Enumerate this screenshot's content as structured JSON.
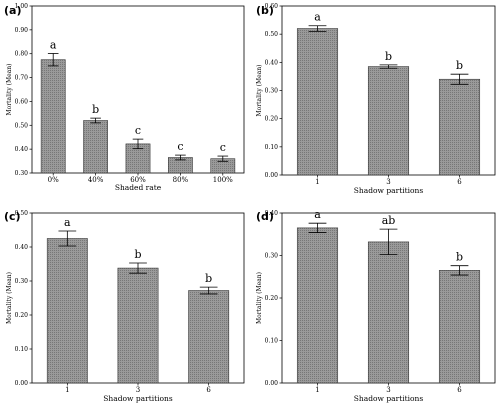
{
  "chart_data": [
    {
      "type": "bar",
      "panel_label": "(a)",
      "categories": [
        "0%",
        "40%",
        "60%",
        "80%",
        "100%"
      ],
      "values": [
        0.775,
        0.52,
        0.422,
        0.365,
        0.36
      ],
      "errors": [
        0.026,
        0.01,
        0.02,
        0.01,
        0.011
      ],
      "significance": [
        "a",
        "b",
        "c",
        "c",
        "c"
      ],
      "xlabel": "Shaded rate",
      "ylabel": "Mortality (Mean)",
      "ylim": [
        0.3,
        1.0
      ],
      "yticks": [
        "0.30",
        "0.40",
        "0.50",
        "0.60",
        "0.70",
        "0.80",
        "0.90",
        "1.00"
      ]
    },
    {
      "type": "bar",
      "panel_label": "(b)",
      "categories": [
        "1",
        "3",
        "6"
      ],
      "values": [
        0.52,
        0.385,
        0.34
      ],
      "errors": [
        0.01,
        0.006,
        0.018
      ],
      "significance": [
        "a",
        "b",
        "b"
      ],
      "xlabel": "Shadow partitions",
      "ylabel": "Mortality (Mean)",
      "ylim": [
        0.0,
        0.6
      ],
      "yticks": [
        "0.00",
        "0.10",
        "0.20",
        "0.30",
        "0.40",
        "0.50",
        "0.60"
      ]
    },
    {
      "type": "bar",
      "panel_label": "(c)",
      "categories": [
        "1",
        "3",
        "6"
      ],
      "values": [
        0.425,
        0.338,
        0.272
      ],
      "errors": [
        0.022,
        0.015,
        0.01
      ],
      "significance": [
        "a",
        "b",
        "b"
      ],
      "xlabel": "Shadow partitions",
      "ylabel": "Mortality (Mean)",
      "ylim": [
        0.0,
        0.5
      ],
      "yticks": [
        "0.00",
        "0.10",
        "0.20",
        "0.30",
        "0.40",
        "0.50"
      ]
    },
    {
      "type": "bar",
      "panel_label": "(d)",
      "categories": [
        "1",
        "3",
        "6"
      ],
      "values": [
        0.365,
        0.332,
        0.265
      ],
      "errors": [
        0.011,
        0.03,
        0.011
      ],
      "significance": [
        "a",
        "ab",
        "b"
      ],
      "xlabel": "Shadow partitions",
      "ylabel": "Mortality (Mean)",
      "ylim": [
        0.0,
        0.4
      ],
      "yticks": [
        "0.00",
        "0.10",
        "0.20",
        "0.30",
        "0.40"
      ]
    }
  ],
  "colors": {
    "bar_fill": "#8c8c8c",
    "bar_stroke": "#3a3a3a",
    "axis": "#000000"
  }
}
